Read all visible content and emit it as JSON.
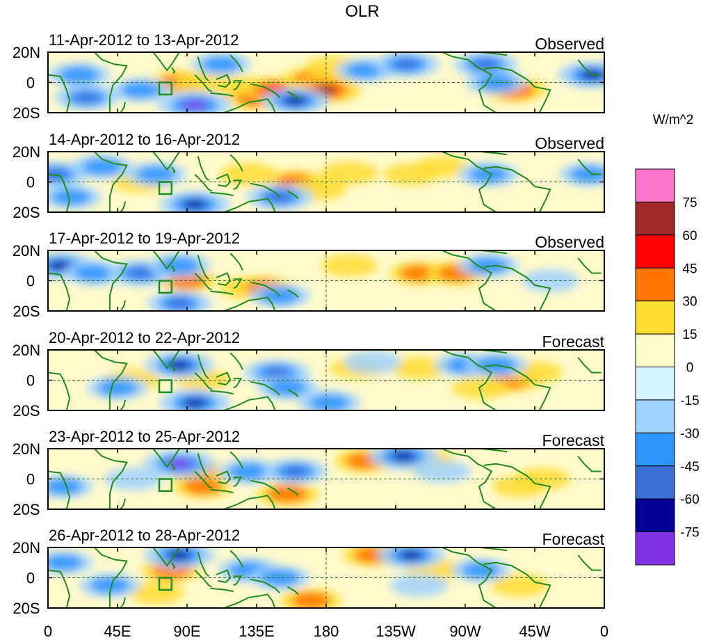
{
  "chart_data": {
    "type": "heatmap",
    "title": "OLR",
    "colorbar": {
      "unit": "W/m^2",
      "tick_labels": [
        "75",
        "60",
        "45",
        "30",
        "15",
        "0",
        "-15",
        "-30",
        "-45",
        "-60",
        "-75"
      ],
      "colors_top_to_bottom": [
        "#ff77cc",
        "#a02828",
        "#ff0000",
        "#ff7700",
        "#ffdc32",
        "#fffacc",
        "#d2f5ff",
        "#a0d2ff",
        "#2e96ff",
        "#3c6ed8",
        "#000096",
        "#8232e6"
      ]
    },
    "x_tick_labels": [
      "0",
      "45E",
      "90E",
      "135E",
      "180",
      "135W",
      "90W",
      "45W",
      "0"
    ],
    "y_tick_labels": [
      "20N",
      "0",
      "20S"
    ],
    "lon_range": [
      0,
      360
    ],
    "lat_range": [
      -20,
      20
    ],
    "panels": [
      {
        "date_range": "11-Apr-2012 to 13-Apr-2012",
        "kind": "Observed",
        "features": [
          {
            "lon": 85,
            "lat": 0,
            "value": 40
          },
          {
            "lon": 100,
            "lat": 0,
            "value": 30
          },
          {
            "lon": 125,
            "lat": -3,
            "value": 25
          },
          {
            "lon": 135,
            "lat": -10,
            "value": 50
          },
          {
            "lon": 147,
            "lat": -5,
            "value": 60
          },
          {
            "lon": 172,
            "lat": 2,
            "value": 45
          },
          {
            "lon": 180,
            "lat": -5,
            "value": 65
          },
          {
            "lon": 185,
            "lat": 10,
            "value": 30
          },
          {
            "lon": 302,
            "lat": -5,
            "value": 45
          },
          {
            "lon": 95,
            "lat": -15,
            "value": -80
          },
          {
            "lon": 60,
            "lat": -5,
            "value": -40
          },
          {
            "lon": 25,
            "lat": -10,
            "value": -50
          },
          {
            "lon": 20,
            "lat": 5,
            "value": -45
          },
          {
            "lon": 160,
            "lat": -12,
            "value": -60
          },
          {
            "lon": 205,
            "lat": 8,
            "value": -35
          },
          {
            "lon": 232,
            "lat": 12,
            "value": -55
          },
          {
            "lon": 283,
            "lat": 12,
            "value": -50
          },
          {
            "lon": 290,
            "lat": 0,
            "value": -40
          },
          {
            "lon": 352,
            "lat": 5,
            "value": -60
          },
          {
            "lon": 112,
            "lat": 12,
            "value": -35
          }
        ]
      },
      {
        "date_range": "14-Apr-2012 to 16-Apr-2012",
        "kind": "Observed",
        "features": [
          {
            "lon": 130,
            "lat": 5,
            "value": 30
          },
          {
            "lon": 160,
            "lat": 0,
            "value": 35
          },
          {
            "lon": 175,
            "lat": -5,
            "value": 25
          },
          {
            "lon": 195,
            "lat": 6,
            "value": 30
          },
          {
            "lon": 235,
            "lat": 5,
            "value": 25
          },
          {
            "lon": 255,
            "lat": 10,
            "value": 20
          },
          {
            "lon": 60,
            "lat": 0,
            "value": 25
          },
          {
            "lon": 5,
            "lat": 5,
            "value": -50
          },
          {
            "lon": 35,
            "lat": 10,
            "value": -45
          },
          {
            "lon": 70,
            "lat": 5,
            "value": -40
          },
          {
            "lon": 95,
            "lat": -15,
            "value": -70
          },
          {
            "lon": 150,
            "lat": -10,
            "value": -55
          },
          {
            "lon": 285,
            "lat": 5,
            "value": -40
          },
          {
            "lon": 350,
            "lat": 5,
            "value": -35
          },
          {
            "lon": 15,
            "lat": -10,
            "value": -40
          }
        ]
      },
      {
        "date_range": "17-Apr-2012 to 19-Apr-2012",
        "kind": "Observed",
        "features": [
          {
            "lon": 90,
            "lat": 0,
            "value": 35
          },
          {
            "lon": 130,
            "lat": -5,
            "value": 30
          },
          {
            "lon": 140,
            "lat": -5,
            "value": 40
          },
          {
            "lon": 195,
            "lat": 10,
            "value": 25
          },
          {
            "lon": 240,
            "lat": 5,
            "value": 35
          },
          {
            "lon": 265,
            "lat": 5,
            "value": 45
          },
          {
            "lon": 8,
            "lat": 10,
            "value": -65
          },
          {
            "lon": 30,
            "lat": 5,
            "value": -45
          },
          {
            "lon": 60,
            "lat": 5,
            "value": -55
          },
          {
            "lon": 85,
            "lat": 10,
            "value": -45
          },
          {
            "lon": 85,
            "lat": -15,
            "value": -50
          },
          {
            "lon": 150,
            "lat": -10,
            "value": -40
          },
          {
            "lon": 285,
            "lat": 10,
            "value": -40
          },
          {
            "lon": 325,
            "lat": 0,
            "value": -30
          }
        ]
      },
      {
        "date_range": "20-Apr-2012 to 22-Apr-2012",
        "kind": "Forecast",
        "features": [
          {
            "lon": 55,
            "lat": 0,
            "value": 25
          },
          {
            "lon": 100,
            "lat": 0,
            "value": 20
          },
          {
            "lon": 300,
            "lat": 0,
            "value": 40
          },
          {
            "lon": 280,
            "lat": -5,
            "value": 30
          },
          {
            "lon": 315,
            "lat": 5,
            "value": 25
          },
          {
            "lon": 240,
            "lat": 8,
            "value": 25
          },
          {
            "lon": 200,
            "lat": 8,
            "value": 20
          },
          {
            "lon": 85,
            "lat": 10,
            "value": -65
          },
          {
            "lon": 95,
            "lat": -15,
            "value": -70
          },
          {
            "lon": 148,
            "lat": 5,
            "value": -55
          },
          {
            "lon": 155,
            "lat": -5,
            "value": -40
          },
          {
            "lon": 182,
            "lat": -15,
            "value": -45
          },
          {
            "lon": 270,
            "lat": 10,
            "value": -40
          },
          {
            "lon": 290,
            "lat": 10,
            "value": -45
          },
          {
            "lon": 45,
            "lat": -5,
            "value": -40
          },
          {
            "lon": 210,
            "lat": 12,
            "value": -30
          }
        ]
      },
      {
        "date_range": "23-Apr-2012 to 25-Apr-2012",
        "kind": "Forecast",
        "features": [
          {
            "lon": 95,
            "lat": 5,
            "value": 45
          },
          {
            "lon": 100,
            "lat": -5,
            "value": 35
          },
          {
            "lon": 155,
            "lat": -10,
            "value": 45
          },
          {
            "lon": 205,
            "lat": 12,
            "value": 40
          },
          {
            "lon": 245,
            "lat": 12,
            "value": 30
          },
          {
            "lon": 320,
            "lat": 0,
            "value": 25
          },
          {
            "lon": 305,
            "lat": -5,
            "value": 20
          },
          {
            "lon": 85,
            "lat": 10,
            "value": -75
          },
          {
            "lon": 130,
            "lat": 5,
            "value": -45
          },
          {
            "lon": 160,
            "lat": 5,
            "value": -50
          },
          {
            "lon": 230,
            "lat": 15,
            "value": -65
          },
          {
            "lon": 10,
            "lat": -5,
            "value": -35
          },
          {
            "lon": 55,
            "lat": 0,
            "value": -30
          },
          {
            "lon": 255,
            "lat": 5,
            "value": -30
          }
        ]
      },
      {
        "date_range": "26-Apr-2012 to 28-Apr-2012",
        "kind": "Forecast",
        "features": [
          {
            "lon": 80,
            "lat": 5,
            "value": 40
          },
          {
            "lon": 170,
            "lat": -15,
            "value": 40
          },
          {
            "lon": 210,
            "lat": 15,
            "value": 35
          },
          {
            "lon": 250,
            "lat": 5,
            "value": 25
          },
          {
            "lon": 70,
            "lat": -10,
            "value": 25
          },
          {
            "lon": 305,
            "lat": -5,
            "value": 30
          },
          {
            "lon": 85,
            "lat": 15,
            "value": -70
          },
          {
            "lon": 130,
            "lat": 5,
            "value": -45
          },
          {
            "lon": 150,
            "lat": 0,
            "value": -40
          },
          {
            "lon": 235,
            "lat": 15,
            "value": -60
          },
          {
            "lon": 240,
            "lat": -5,
            "value": -30
          },
          {
            "lon": 40,
            "lat": -5,
            "value": -40
          },
          {
            "lon": 10,
            "lat": 10,
            "value": -35
          },
          {
            "lon": 280,
            "lat": 5,
            "value": -35
          }
        ]
      }
    ],
    "equator_dashed_line": true,
    "dateline_dashed_line": true,
    "highlight_box": {
      "lon_range": [
        72,
        80
      ],
      "lat_range": [
        -8,
        0
      ]
    }
  }
}
